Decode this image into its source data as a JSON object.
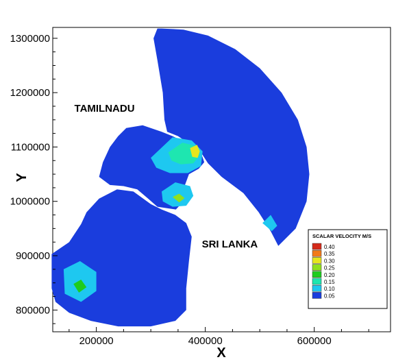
{
  "chart_data": {
    "type": "heatmap",
    "title": "",
    "xlabel": "X",
    "ylabel": "Y",
    "xlim": [
      120000,
      740000
    ],
    "ylim": [
      760000,
      1320000
    ],
    "x_ticks": [
      {
        "value": 200000,
        "label": "200000"
      },
      {
        "value": 400000,
        "label": "400000"
      },
      {
        "value": 600000,
        "label": "600000"
      }
    ],
    "y_ticks": [
      {
        "value": 800000,
        "label": "800000"
      },
      {
        "value": 900000,
        "label": "900000"
      },
      {
        "value": 1000000,
        "label": "1000000"
      },
      {
        "value": 1100000,
        "label": "1100000"
      },
      {
        "value": 1200000,
        "label": "1200000"
      },
      {
        "value": 1300000,
        "label": "1300000"
      }
    ],
    "annotations": [
      {
        "text": "TAMILNADU",
        "x": 215000,
        "y": 1165000
      },
      {
        "text": "SRI LANKA",
        "x": 445000,
        "y": 915000
      }
    ],
    "legend": {
      "title": "SCALAR VELOCITY M/S",
      "placement": "bottom-right",
      "levels": [
        {
          "label": "0.40",
          "color": "#d42a1a"
        },
        {
          "label": "0.35",
          "color": "#f27a1a"
        },
        {
          "label": "0.30",
          "color": "#e6e61e"
        },
        {
          "label": "0.25",
          "color": "#8fe01e"
        },
        {
          "label": "0.20",
          "color": "#1ecc1e"
        },
        {
          "label": "0.15",
          "color": "#1ee6b0"
        },
        {
          "label": "0.10",
          "color": "#1ec8f0"
        },
        {
          "label": "0.05",
          "color": "#1a3ddd"
        }
      ]
    },
    "grid": false,
    "field_regions": [
      {
        "name": "northeast-sea",
        "level": 0.05,
        "outline": [
          [
            312000,
            1318000
          ],
          [
            320000,
            1318000
          ],
          [
            360000,
            1316000
          ],
          [
            405000,
            1305000
          ],
          [
            455000,
            1280000
          ],
          [
            500000,
            1245000
          ],
          [
            540000,
            1200000
          ],
          [
            570000,
            1150000
          ],
          [
            586000,
            1100000
          ],
          [
            591000,
            1050000
          ],
          [
            586000,
            1000000
          ],
          [
            566000,
            950000
          ],
          [
            534000,
            918000
          ],
          [
            520000,
            945000
          ],
          [
            498000,
            980000
          ],
          [
            470000,
            1015000
          ],
          [
            430000,
            1045000
          ],
          [
            405000,
            1070000
          ],
          [
            392000,
            1090000
          ],
          [
            372000,
            1105000
          ],
          [
            350000,
            1120000
          ],
          [
            330000,
            1128000
          ],
          [
            325000,
            1150000
          ],
          [
            322000,
            1200000
          ],
          [
            312000,
            1260000
          ],
          [
            305000,
            1300000
          ]
        ]
      },
      {
        "name": "palk-strait",
        "level": 0.05,
        "outline": [
          [
            255000,
            1135000
          ],
          [
            285000,
            1140000
          ],
          [
            320000,
            1128000
          ],
          [
            340000,
            1120000
          ],
          [
            360000,
            1110000
          ],
          [
            378000,
            1102000
          ],
          [
            392000,
            1090000
          ],
          [
            398000,
            1072000
          ],
          [
            388000,
            1060000
          ],
          [
            370000,
            1050000
          ],
          [
            362000,
            1028000
          ],
          [
            360000,
            1000000
          ],
          [
            346000,
            985000
          ],
          [
            312000,
            990000
          ],
          [
            295000,
            1005000
          ],
          [
            275000,
            1022000
          ],
          [
            250000,
            1028000
          ],
          [
            225000,
            1030000
          ],
          [
            205000,
            1045000
          ],
          [
            212000,
            1072000
          ],
          [
            225000,
            1100000
          ],
          [
            240000,
            1120000
          ]
        ]
      },
      {
        "name": "southwest-sea",
        "level": 0.05,
        "outline": [
          [
            118000,
            903000
          ],
          [
            150000,
            925000
          ],
          [
            172000,
            958000
          ],
          [
            182000,
            980000
          ],
          [
            205000,
            1005000
          ],
          [
            238000,
            1022000
          ],
          [
            268000,
            1018000
          ],
          [
            300000,
            995000
          ],
          [
            320000,
            985000
          ],
          [
            345000,
            975000
          ],
          [
            365000,
            960000
          ],
          [
            375000,
            935000
          ],
          [
            370000,
            890000
          ],
          [
            365000,
            840000
          ],
          [
            365000,
            800000
          ],
          [
            345000,
            780000
          ],
          [
            300000,
            770000
          ],
          [
            240000,
            770000
          ],
          [
            190000,
            780000
          ],
          [
            150000,
            795000
          ],
          [
            125000,
            815000
          ],
          [
            118000,
            840000
          ]
        ]
      },
      {
        "name": "palk-bay-cyan",
        "level": 0.1,
        "outline": [
          [
            300000,
            1080000
          ],
          [
            340000,
            1118000
          ],
          [
            375000,
            1112000
          ],
          [
            395000,
            1092000
          ],
          [
            392000,
            1065000
          ],
          [
            368000,
            1052000
          ],
          [
            335000,
            1052000
          ],
          [
            310000,
            1062000
          ]
        ]
      },
      {
        "name": "palk-bay-core",
        "level": 0.15,
        "outline": [
          [
            332000,
            1090000
          ],
          [
            358000,
            1108000
          ],
          [
            382000,
            1102000
          ],
          [
            390000,
            1085000
          ],
          [
            378000,
            1070000
          ],
          [
            355000,
            1068000
          ],
          [
            338000,
            1075000
          ]
        ]
      },
      {
        "name": "palk-bay-peak",
        "level": 0.3,
        "outline": [
          [
            372000,
            1098000
          ],
          [
            385000,
            1104000
          ],
          [
            390000,
            1092000
          ],
          [
            386000,
            1080000
          ],
          [
            376000,
            1082000
          ]
        ]
      },
      {
        "name": "mannar-cyan",
        "level": 0.1,
        "outline": [
          [
            320000,
            1018000
          ],
          [
            345000,
            1035000
          ],
          [
            372000,
            1028000
          ],
          [
            378000,
            1010000
          ],
          [
            365000,
            992000
          ],
          [
            340000,
            990000
          ],
          [
            322000,
            1000000
          ]
        ]
      },
      {
        "name": "mannar-peak",
        "level": 0.25,
        "outline": [
          [
            340000,
            1008000
          ],
          [
            352000,
            1014000
          ],
          [
            362000,
            1006000
          ],
          [
            352000,
            998000
          ]
        ]
      },
      {
        "name": "east-coast-cyan",
        "level": 0.1,
        "outline": [
          [
            505000,
            960000
          ],
          [
            522000,
            945000
          ],
          [
            532000,
            955000
          ],
          [
            520000,
            975000
          ]
        ]
      },
      {
        "name": "southwest-cyan",
        "level": 0.1,
        "outline": [
          [
            140000,
            875000
          ],
          [
            170000,
            890000
          ],
          [
            200000,
            870000
          ],
          [
            200000,
            835000
          ],
          [
            172000,
            815000
          ],
          [
            142000,
            830000
          ]
        ]
      },
      {
        "name": "southwest-peak",
        "level": 0.2,
        "outline": [
          [
            158000,
            848000
          ],
          [
            172000,
            856000
          ],
          [
            182000,
            842000
          ],
          [
            168000,
            832000
          ]
        ]
      }
    ]
  }
}
